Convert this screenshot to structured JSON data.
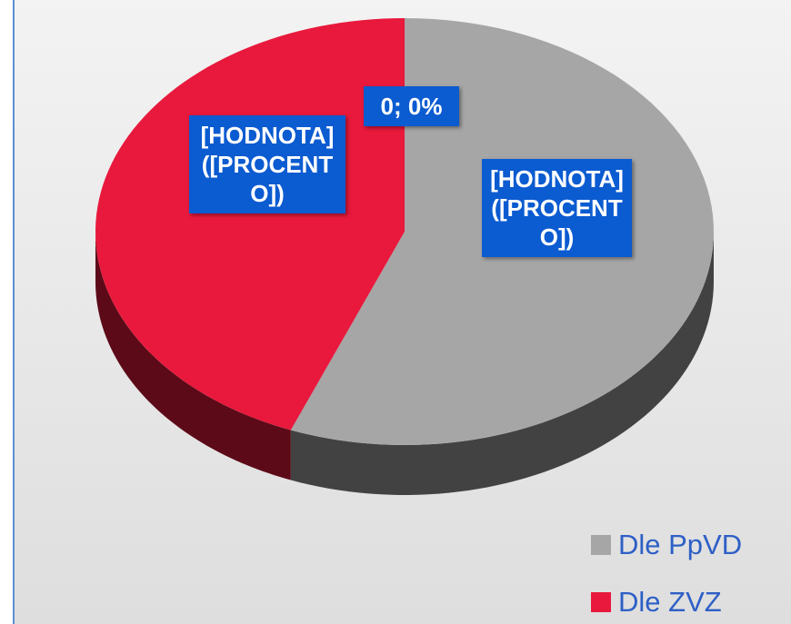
{
  "chart_data": {
    "type": "pie",
    "three_d": true,
    "categories": [
      "Dle PpVD",
      "Dle ZVZ",
      null
    ],
    "values": [
      56,
      44,
      0
    ],
    "value_labels": [
      "[HODNOTA] ([PROCENTO])",
      "[HODNOTA] ([PROCENTO])",
      "0; 0%"
    ],
    "colors": [
      "#a6a6a6",
      "#e8193c",
      "#4472c4"
    ],
    "legend": "bottom-right"
  }
}
